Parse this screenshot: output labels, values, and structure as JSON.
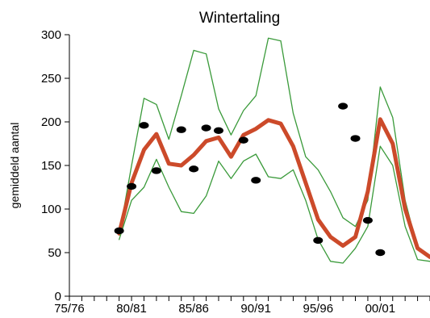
{
  "chart_data": {
    "type": "line",
    "title": "Wintertaling",
    "xlabel": "",
    "ylabel": "gemiddeld aantal",
    "ylim": [
      0,
      300
    ],
    "yticks": [
      0,
      50,
      100,
      150,
      200,
      250,
      300
    ],
    "xlim": [
      1975,
      2004
    ],
    "xticks": [
      {
        "value": 1975,
        "label": "75/76"
      },
      {
        "value": 1980,
        "label": "80/81"
      },
      {
        "value": 1985,
        "label": "85/86"
      },
      {
        "value": 1990,
        "label": "90/91"
      },
      {
        "value": 1995,
        "label": "95/96"
      },
      {
        "value": 2000,
        "label": "00/01"
      }
    ],
    "grid": false,
    "x": [
      1979,
      1980,
      1981,
      1982,
      1983,
      1984,
      1985,
      1986,
      1987,
      1988,
      1989,
      1990,
      1991,
      1992,
      1993,
      1994,
      1995,
      1996,
      1997,
      1998,
      1999,
      2000,
      2001,
      2002,
      2003,
      2004
    ],
    "series": [
      {
        "role": "upper",
        "color": "#3a9a3a",
        "values": [
          70,
          150,
          227,
          220,
          180,
          230,
          282,
          278,
          215,
          185,
          213,
          230,
          296,
          293,
          210,
          160,
          145,
          120,
          90,
          80,
          110,
          240,
          205,
          110,
          55,
          45
        ]
      },
      {
        "role": "trend",
        "color": "#cc4a2a",
        "values": [
          72,
          130,
          168,
          186,
          152,
          150,
          162,
          178,
          182,
          160,
          185,
          192,
          202,
          198,
          172,
          130,
          88,
          68,
          58,
          68,
          120,
          203,
          175,
          100,
          55,
          45
        ]
      },
      {
        "role": "lower",
        "color": "#3a9a3a",
        "values": [
          65,
          110,
          125,
          157,
          125,
          97,
          95,
          115,
          155,
          135,
          155,
          163,
          137,
          135,
          145,
          110,
          65,
          40,
          38,
          55,
          80,
          172,
          150,
          80,
          42,
          40
        ]
      }
    ],
    "observed": {
      "color": "#000000",
      "points": [
        [
          1979,
          75
        ],
        [
          1980,
          126
        ],
        [
          1981,
          196
        ],
        [
          1982,
          144
        ],
        [
          1984,
          191
        ],
        [
          1985,
          146
        ],
        [
          1986,
          193
        ],
        [
          1987,
          190
        ],
        [
          1989,
          179
        ],
        [
          1990,
          133
        ],
        [
          1995,
          64
        ],
        [
          1997,
          218
        ],
        [
          1998,
          181
        ],
        [
          1999,
          87
        ],
        [
          2000,
          50
        ]
      ]
    }
  }
}
